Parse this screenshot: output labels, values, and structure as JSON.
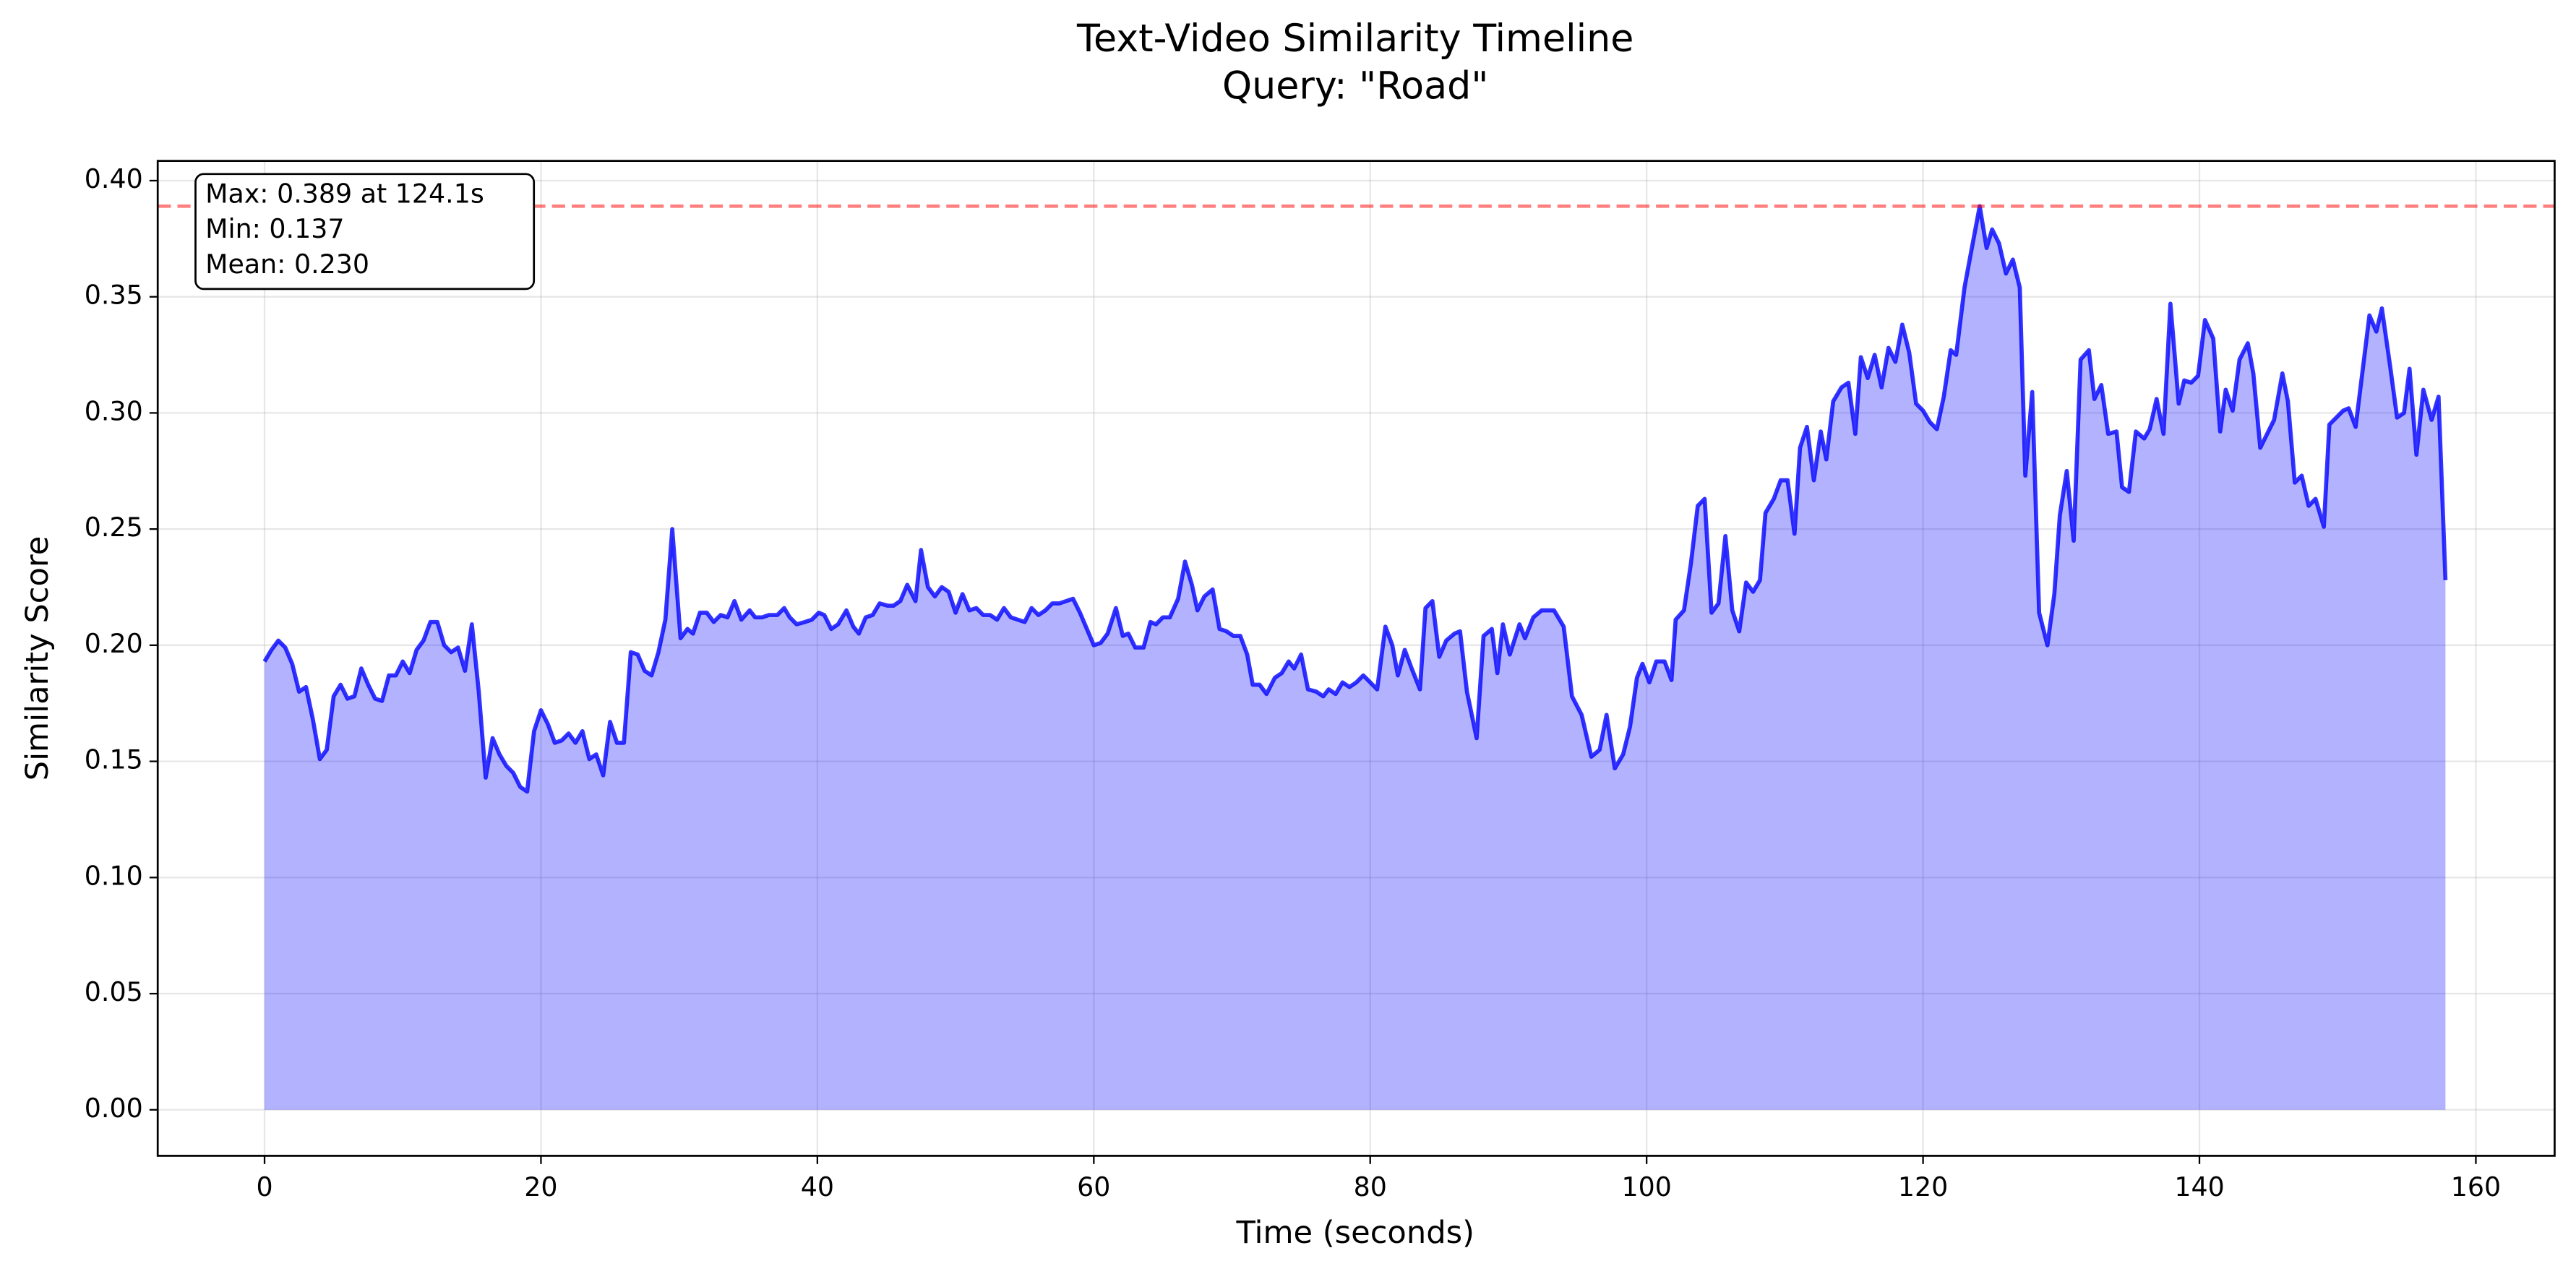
{
  "chart_data": {
    "type": "area-line",
    "title": "Text-Video Similarity Timeline",
    "subtitle": "Query: \"Road\"",
    "x_label": "Time (seconds)",
    "y_label": "Similarity Score",
    "annotation": [
      "Max: 0.389 at 124.1s",
      "Min: 0.137",
      "Mean: 0.230"
    ],
    "reference_line": {
      "value": 0.389,
      "color": "#ff0000"
    },
    "color": "#0000ff",
    "grid": true,
    "xlim": [
      -7.73,
      165.7
    ],
    "ylim": [
      -0.0198,
      0.4085
    ],
    "xticks": [
      0,
      20,
      40,
      60,
      80,
      100,
      120,
      140,
      160
    ],
    "yticks": [
      {
        "value": 0,
        "label": "0.00"
      },
      {
        "value": 0.05,
        "label": "0.05"
      },
      {
        "value": 0.1,
        "label": "0.10"
      },
      {
        "value": 0.15,
        "label": "0.15"
      },
      {
        "value": 0.2,
        "label": "0.20"
      },
      {
        "value": 0.25,
        "label": "0.25"
      },
      {
        "value": 0.3,
        "label": "0.30"
      },
      {
        "value": 0.35,
        "label": "0.35"
      },
      {
        "value": 0.4,
        "label": "0.40"
      }
    ],
    "x": [
      0,
      0.5,
      1,
      1.5,
      2,
      2.5,
      3,
      3.5,
      4,
      4.5,
      5,
      5.5,
      6,
      6.5,
      7,
      7.5,
      8,
      8.5,
      9,
      9.5,
      10,
      10.5,
      11,
      11.5,
      12,
      12.5,
      13,
      13.5,
      14,
      14.5,
      15,
      15.5,
      16,
      16.5,
      17,
      17.5,
      18,
      18.5,
      19,
      19.5,
      20,
      20.5,
      21,
      21.5,
      22,
      22.5,
      23,
      23.5,
      24,
      24.5,
      25,
      25.5,
      26,
      26.5,
      27,
      27.5,
      28,
      28.5,
      29,
      29.5,
      30.1,
      30.6,
      31,
      31.5,
      32,
      32.5,
      33,
      33.5,
      34,
      34.5,
      35.1,
      35.5,
      36,
      36.5,
      37.1,
      37.6,
      38,
      38.5,
      39.1,
      39.6,
      40.1,
      40.5,
      41,
      41.5,
      42.1,
      42.6,
      43,
      43.5,
      44,
      44.5,
      45.1,
      45.5,
      46,
      46.5,
      47.1,
      47.5,
      48,
      48.5,
      49,
      49.5,
      50,
      50.5,
      51,
      51.5,
      52,
      52.5,
      53,
      53.5,
      54,
      54.5,
      55,
      55.5,
      56,
      56.5,
      57,
      57.5,
      58,
      58.5,
      59,
      59.5,
      60,
      60.5,
      61,
      61.6,
      62.1,
      62.5,
      63,
      63.6,
      64.1,
      64.5,
      65,
      65.5,
      66.1,
      66.6,
      67.1,
      67.5,
      68,
      68.6,
      69.1,
      69.6,
      70.1,
      70.6,
      71.1,
      71.5,
      72,
      72.5,
      73.1,
      73.6,
      74.1,
      74.5,
      75,
      75.5,
      76.1,
      76.6,
      77,
      77.5,
      78,
      78.5,
      79,
      79.5,
      80,
      80.5,
      81.1,
      81.6,
      82,
      82.5,
      83,
      83.6,
      84,
      84.5,
      85,
      85.5,
      86.1,
      86.5,
      87,
      87.7,
      88.2,
      88.8,
      89.2,
      89.6,
      90.1,
      90.8,
      91.2,
      91.8,
      92.4,
      93.3,
      94,
      94.6,
      95.3,
      96,
      96.6,
      97.1,
      97.7,
      98.3,
      98.8,
      99.3,
      99.7,
      100.2,
      100.7,
      101.3,
      101.8,
      102.1,
      102.7,
      103.2,
      103.7,
      104.2,
      104.7,
      105.2,
      105.7,
      106.2,
      106.7,
      107.2,
      107.7,
      108.2,
      108.6,
      109.2,
      109.7,
      110.2,
      110.7,
      111.1,
      111.6,
      112.1,
      112.6,
      113,
      113.5,
      114.1,
      114.6,
      115.1,
      115.5,
      116,
      116.5,
      117,
      117.5,
      118,
      118.5,
      119,
      119.5,
      120,
      120.5,
      121,
      121.5,
      122,
      122.4,
      123,
      123.5,
      124.1,
      124.6,
      125,
      125.5,
      126,
      126.5,
      127,
      127.4,
      127.9,
      128.4,
      129,
      129.5,
      129.9,
      130.4,
      130.9,
      131.4,
      132,
      132.4,
      132.9,
      133.4,
      134,
      134.4,
      134.9,
      135.4,
      136,
      136.4,
      136.9,
      137.4,
      137.9,
      138.5,
      138.9,
      139.4,
      139.9,
      140.4,
      141,
      141.5,
      141.9,
      142.4,
      142.9,
      143.5,
      143.9,
      144.4,
      144.9,
      145.4,
      146,
      146.4,
      146.9,
      147.4,
      147.9,
      148.4,
      149,
      149.4,
      149.9,
      150.4,
      150.8,
      151.3,
      151.8,
      152.3,
      152.8,
      153.2,
      153.8,
      154.3,
      154.8,
      155.2,
      155.7,
      156.2,
      156.8,
      157.3,
      157.8
    ],
    "values": [
      0.193,
      0.198,
      0.202,
      0.199,
      0.192,
      0.18,
      0.182,
      0.168,
      0.151,
      0.155,
      0.178,
      0.183,
      0.177,
      0.178,
      0.19,
      0.183,
      0.177,
      0.176,
      0.187,
      0.187,
      0.193,
      0.188,
      0.198,
      0.202,
      0.21,
      0.21,
      0.2,
      0.197,
      0.199,
      0.189,
      0.209,
      0.18,
      0.143,
      0.16,
      0.153,
      0.148,
      0.145,
      0.139,
      0.137,
      0.163,
      0.172,
      0.166,
      0.158,
      0.159,
      0.162,
      0.158,
      0.163,
      0.151,
      0.153,
      0.144,
      0.167,
      0.158,
      0.158,
      0.197,
      0.196,
      0.189,
      0.187,
      0.197,
      0.211,
      0.25,
      0.203,
      0.207,
      0.205,
      0.214,
      0.214,
      0.21,
      0.213,
      0.212,
      0.219,
      0.211,
      0.215,
      0.212,
      0.212,
      0.213,
      0.213,
      0.216,
      0.212,
      0.209,
      0.21,
      0.211,
      0.214,
      0.213,
      0.207,
      0.209,
      0.215,
      0.208,
      0.205,
      0.212,
      0.213,
      0.218,
      0.217,
      0.217,
      0.219,
      0.226,
      0.219,
      0.241,
      0.225,
      0.221,
      0.225,
      0.223,
      0.214,
      0.222,
      0.215,
      0.216,
      0.213,
      0.213,
      0.211,
      0.216,
      0.212,
      0.211,
      0.21,
      0.216,
      0.213,
      0.215,
      0.218,
      0.218,
      0.219,
      0.22,
      0.214,
      0.207,
      0.2,
      0.201,
      0.205,
      0.216,
      0.204,
      0.205,
      0.199,
      0.199,
      0.21,
      0.209,
      0.212,
      0.212,
      0.22,
      0.236,
      0.226,
      0.215,
      0.221,
      0.224,
      0.207,
      0.206,
      0.204,
      0.204,
      0.196,
      0.183,
      0.183,
      0.179,
      0.186,
      0.188,
      0.193,
      0.19,
      0.196,
      0.181,
      0.18,
      0.178,
      0.181,
      0.179,
      0.184,
      0.182,
      0.184,
      0.187,
      0.184,
      0.181,
      0.208,
      0.2,
      0.187,
      0.198,
      0.19,
      0.181,
      0.216,
      0.219,
      0.195,
      0.202,
      0.205,
      0.206,
      0.18,
      0.16,
      0.204,
      0.207,
      0.188,
      0.209,
      0.196,
      0.209,
      0.203,
      0.212,
      0.215,
      0.215,
      0.208,
      0.178,
      0.17,
      0.152,
      0.155,
      0.17,
      0.147,
      0.153,
      0.165,
      0.186,
      0.192,
      0.184,
      0.193,
      0.193,
      0.185,
      0.211,
      0.215,
      0.235,
      0.26,
      0.263,
      0.214,
      0.218,
      0.247,
      0.215,
      0.206,
      0.227,
      0.223,
      0.228,
      0.257,
      0.263,
      0.271,
      0.271,
      0.248,
      0.285,
      0.294,
      0.271,
      0.292,
      0.28,
      0.305,
      0.311,
      0.313,
      0.291,
      0.324,
      0.315,
      0.325,
      0.311,
      0.328,
      0.322,
      0.338,
      0.326,
      0.304,
      0.301,
      0.296,
      0.293,
      0.307,
      0.327,
      0.325,
      0.354,
      0.37,
      0.389,
      0.371,
      0.379,
      0.373,
      0.36,
      0.366,
      0.354,
      0.273,
      0.309,
      0.214,
      0.2,
      0.222,
      0.256,
      0.275,
      0.245,
      0.323,
      0.327,
      0.306,
      0.312,
      0.291,
      0.292,
      0.268,
      0.266,
      0.292,
      0.289,
      0.293,
      0.306,
      0.291,
      0.347,
      0.304,
      0.314,
      0.313,
      0.316,
      0.34,
      0.332,
      0.292,
      0.31,
      0.301,
      0.323,
      0.33,
      0.317,
      0.285,
      0.291,
      0.297,
      0.317,
      0.305,
      0.27,
      0.273,
      0.26,
      0.263,
      0.251,
      0.295,
      0.298,
      0.301,
      0.302,
      0.294,
      0.318,
      0.342,
      0.335,
      0.345,
      0.32,
      0.298,
      0.3,
      0.319,
      0.282,
      0.31,
      0.297,
      0.307,
      0.228
    ]
  }
}
